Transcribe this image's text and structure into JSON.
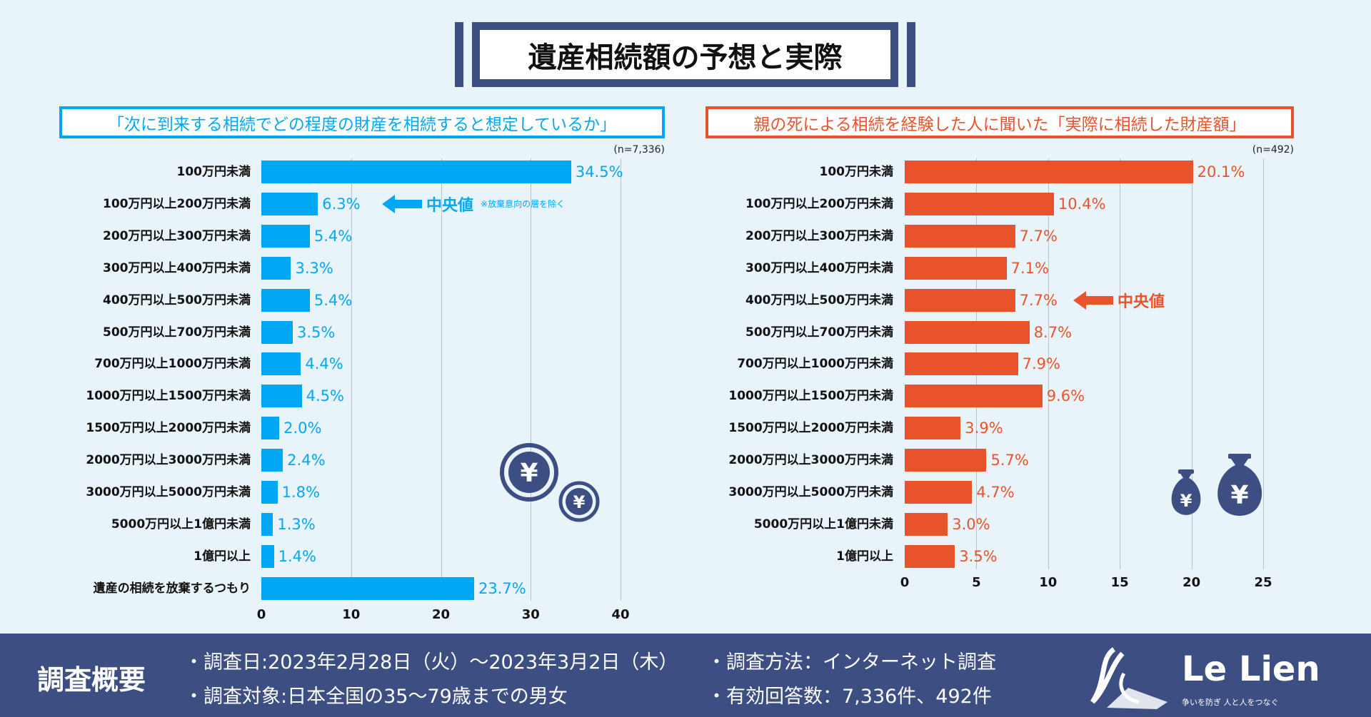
{
  "title": "遺産相続額の予想と実際",
  "colors": {
    "left": "#00a7f5",
    "right": "#e8532b",
    "navy": "#3d4e82",
    "background": "#e8f3fa"
  },
  "chart_data": [
    {
      "type": "bar",
      "orientation": "horizontal",
      "title": "「次に到来する相続でどの程度の財産を相続すると想定しているか」",
      "sample": "(n=7,336)",
      "categories": [
        "100万円未満",
        "100万円以上200万円未満",
        "200万円以上300万円未満",
        "300万円以上400万円未満",
        "400万円以上500万円未満",
        "500万円以上700万円未満",
        "700万円以上1000万円未満",
        "1000万円以上1500万円未満",
        "1500万円以上2000万円未満",
        "2000万円以上3000万円未満",
        "3000万円以上5000万円未満",
        "5000万円以上1億円未満",
        "1億円以上",
        "遺産の相続を放棄するつもり"
      ],
      "values": [
        34.5,
        6.3,
        5.4,
        3.3,
        5.4,
        3.5,
        4.4,
        4.5,
        2.0,
        2.4,
        1.8,
        1.3,
        1.4,
        23.7
      ],
      "labels": [
        "34.5%",
        "6.3%",
        "5.4%",
        "3.3%",
        "5.4%",
        "3.5%",
        "4.4%",
        "4.5%",
        "2.0%",
        "2.4%",
        "1.8%",
        "1.3%",
        "1.4%",
        "23.7%"
      ],
      "xlim": [
        0,
        40
      ],
      "ticks": [
        "0",
        "10",
        "20",
        "30",
        "40"
      ],
      "grid": true,
      "annotation": {
        "category_index": 1,
        "text": "中央値",
        "note": "※放棄意向の層を除く"
      }
    },
    {
      "type": "bar",
      "orientation": "horizontal",
      "title": "親の死による相続を経験した人に聞いた「実際に相続した財産額」",
      "sample": "(n=492)",
      "categories": [
        "100万円未満",
        "100万円以上200万円未満",
        "200万円以上300万円未満",
        "300万円以上400万円未満",
        "400万円以上500万円未満",
        "500万円以上700万円未満",
        "700万円以上1000万円未満",
        "1000万円以上1500万円未満",
        "1500万円以上2000万円未満",
        "2000万円以上3000万円未満",
        "3000万円以上5000万円未満",
        "5000万円以上1億円未満",
        "1億円以上"
      ],
      "values": [
        20.1,
        10.4,
        7.7,
        7.1,
        7.7,
        8.7,
        7.9,
        9.6,
        3.9,
        5.7,
        4.7,
        3.0,
        3.5
      ],
      "labels": [
        "20.1%",
        "10.4%",
        "7.7%",
        "7.1%",
        "7.7%",
        "8.7%",
        "7.9%",
        "9.6%",
        "3.9%",
        "5.7%",
        "4.7%",
        "3.0%",
        "3.5%"
      ],
      "xlim": [
        0,
        25
      ],
      "ticks": [
        "0",
        "5",
        "10",
        "15",
        "20",
        "25"
      ],
      "grid": true,
      "annotation": {
        "category_index": 4,
        "text": "中央値"
      }
    }
  ],
  "footer": {
    "title": "調査概要",
    "items": [
      "・調査日:2023年2月28日（火）～2023年3月2日（木）",
      "・調査方法：インターネット調査",
      "・調査対象:日本全国の35～79歳までの男女",
      "・有効回答数：7,336件、492件"
    ],
    "logo": {
      "name": "Le Lien",
      "tagline": "争いを防ぎ 人と人をつなぐ"
    }
  }
}
